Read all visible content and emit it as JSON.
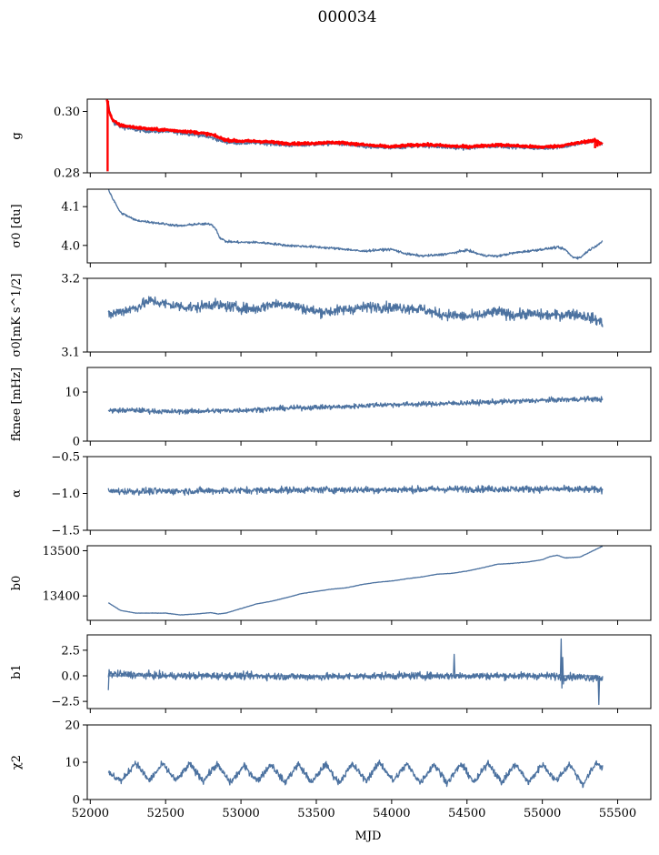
{
  "figure": {
    "title": "000034",
    "xlabel": "MJD"
  },
  "chart_data": [
    {
      "type": "line",
      "ylabel": "g",
      "xlim": [
        51980,
        55720
      ],
      "ylim": [
        0.28,
        0.304
      ],
      "yticks": [
        0.28,
        0.3
      ],
      "ytick_labels": [
        "0.28",
        "0.30"
      ],
      "xticks": [
        52000,
        52500,
        53000,
        53500,
        54000,
        54500,
        55000,
        55500
      ],
      "series": [
        {
          "color": "#4c72a0",
          "linewidth": 1.3,
          "noise": 0.0006,
          "x": [
            52120,
            52135,
            52160,
            52200,
            52300,
            52400,
            52500,
            52600,
            52700,
            52800,
            52900,
            53000,
            53100,
            53200,
            53300,
            53400,
            53500,
            53600,
            53700,
            53800,
            53900,
            54000,
            54100,
            54200,
            54300,
            54400,
            54500,
            54600,
            54700,
            54800,
            54900,
            55000,
            55100,
            55200,
            55300,
            55350,
            55400
          ],
          "y": [
            0.3025,
            0.2985,
            0.296,
            0.295,
            0.294,
            0.2935,
            0.2935,
            0.293,
            0.2925,
            0.2915,
            0.29,
            0.2897,
            0.2898,
            0.2895,
            0.289,
            0.289,
            0.2893,
            0.2895,
            0.2893,
            0.2885,
            0.2883,
            0.288,
            0.2885,
            0.2888,
            0.2886,
            0.2882,
            0.288,
            0.2884,
            0.2887,
            0.2885,
            0.2882,
            0.288,
            0.2883,
            0.289,
            0.29,
            0.2903,
            0.2893
          ]
        },
        {
          "color": "#ff0000",
          "linewidth": 2.6,
          "noise": 0.0004,
          "x": [
            52110,
            52125,
            52150,
            52200,
            52300,
            52400,
            52500,
            52600,
            52700,
            52800,
            52900,
            53000,
            53100,
            53200,
            53300,
            53400,
            53500,
            53600,
            53700,
            53800,
            53900,
            54000,
            54100,
            54200,
            54300,
            54400,
            54500,
            54600,
            54700,
            54800,
            54900,
            55000,
            55100,
            55200,
            55300,
            55350,
            55400
          ],
          "y": [
            0.304,
            0.3,
            0.297,
            0.2955,
            0.2948,
            0.2942,
            0.294,
            0.2936,
            0.2932,
            0.2925,
            0.2907,
            0.2903,
            0.2903,
            0.29,
            0.2896,
            0.2895,
            0.2897,
            0.2899,
            0.2897,
            0.2892,
            0.2888,
            0.2885,
            0.2889,
            0.2892,
            0.289,
            0.2887,
            0.2885,
            0.2888,
            0.2891,
            0.2889,
            0.2886,
            0.2884,
            0.2887,
            0.2894,
            0.2903,
            0.2905,
            0.2895
          ]
        }
      ]
    },
    {
      "type": "line",
      "ylabel": "σ0 [du]",
      "xlim": [
        51980,
        55720
      ],
      "ylim": [
        3.955,
        4.145
      ],
      "yticks": [
        4.0,
        4.1
      ],
      "ytick_labels": [
        "4.0",
        "4.1"
      ],
      "xticks": [
        52000,
        52500,
        53000,
        53500,
        54000,
        54500,
        55000,
        55500
      ],
      "series": [
        {
          "color": "#4c72a0",
          "linewidth": 1.3,
          "noise": 0.003,
          "x": [
            52120,
            52150,
            52200,
            52300,
            52400,
            52500,
            52600,
            52700,
            52800,
            52830,
            52860,
            52900,
            53000,
            53100,
            53200,
            53300,
            53400,
            53500,
            53600,
            53700,
            53800,
            53900,
            54000,
            54100,
            54200,
            54300,
            54400,
            54500,
            54600,
            54700,
            54800,
            54900,
            55000,
            55100,
            55150,
            55200,
            55250,
            55300,
            55400
          ],
          "y": [
            4.145,
            4.12,
            4.085,
            4.065,
            4.06,
            4.055,
            4.05,
            4.055,
            4.055,
            4.045,
            4.02,
            4.01,
            4.008,
            4.008,
            4.005,
            4.0,
            3.998,
            3.996,
            3.993,
            3.99,
            3.985,
            3.988,
            3.99,
            3.978,
            3.973,
            3.975,
            3.98,
            3.988,
            3.975,
            3.972,
            3.98,
            3.985,
            3.99,
            3.995,
            3.99,
            3.97,
            3.968,
            3.985,
            4.01
          ]
        }
      ]
    },
    {
      "type": "line",
      "ylabel": "σ0[mK s^1/2]",
      "xlim": [
        51980,
        55720
      ],
      "ylim": [
        3.1,
        3.2
      ],
      "yticks": [
        3.1,
        3.2
      ],
      "ytick_labels": [
        "3.1",
        "3.2"
      ],
      "xticks": [
        52000,
        52500,
        53000,
        53500,
        54000,
        54500,
        55000,
        55500
      ],
      "series": [
        {
          "color": "#4c72a0",
          "linewidth": 1.3,
          "noise": 0.007,
          "x": [
            52120,
            52200,
            52300,
            52400,
            52500,
            52600,
            52700,
            52800,
            52900,
            53000,
            53100,
            53200,
            53300,
            53400,
            53500,
            53600,
            53700,
            53800,
            53900,
            54000,
            54100,
            54200,
            54300,
            54400,
            54500,
            54600,
            54700,
            54800,
            54900,
            55000,
            55100,
            55200,
            55300,
            55400
          ],
          "y": [
            3.15,
            3.155,
            3.16,
            3.17,
            3.165,
            3.162,
            3.16,
            3.165,
            3.162,
            3.16,
            3.158,
            3.165,
            3.165,
            3.16,
            3.155,
            3.155,
            3.158,
            3.16,
            3.162,
            3.16,
            3.16,
            3.158,
            3.152,
            3.15,
            3.148,
            3.15,
            3.155,
            3.15,
            3.152,
            3.15,
            3.15,
            3.152,
            3.148,
            3.14
          ]
        }
      ]
    },
    {
      "type": "line",
      "ylabel": "fknee [mHz]",
      "xlim": [
        51980,
        55720
      ],
      "ylim": [
        0,
        15
      ],
      "yticks": [
        0,
        10
      ],
      "ytick_labels": [
        "0",
        "10"
      ],
      "xticks": [
        52000,
        52500,
        53000,
        53500,
        54000,
        54500,
        55000,
        55500
      ],
      "series": [
        {
          "color": "#4c72a0",
          "linewidth": 1.3,
          "noise": 0.5,
          "x": [
            52120,
            52300,
            52500,
            52700,
            52900,
            53100,
            53300,
            53500,
            53700,
            53900,
            54100,
            54300,
            54500,
            54700,
            54900,
            55100,
            55300,
            55400
          ],
          "y": [
            6.2,
            6.3,
            6.0,
            6.1,
            6.2,
            6.4,
            6.7,
            6.9,
            7.0,
            7.4,
            7.5,
            7.6,
            7.8,
            8.0,
            8.2,
            8.4,
            8.6,
            8.5
          ]
        }
      ]
    },
    {
      "type": "line",
      "ylabel": "α",
      "xlim": [
        51980,
        55720
      ],
      "ylim": [
        -1.5,
        -0.5
      ],
      "yticks": [
        -1.5,
        -1.0,
        -0.5
      ],
      "ytick_labels": [
        "−1.5",
        "−1.0",
        "−0.5"
      ],
      "xticks": [
        52000,
        52500,
        53000,
        53500,
        54000,
        54500,
        55000,
        55500
      ],
      "series": [
        {
          "color": "#4c72a0",
          "linewidth": 1.3,
          "noise": 0.045,
          "x": [
            52120,
            52500,
            53000,
            53500,
            54000,
            54500,
            55000,
            55400
          ],
          "y": [
            -0.97,
            -0.97,
            -0.96,
            -0.95,
            -0.95,
            -0.94,
            -0.94,
            -0.95
          ]
        }
      ]
    },
    {
      "type": "line",
      "ylabel": "b0",
      "xlim": [
        51980,
        55720
      ],
      "ylim": [
        13346,
        13511
      ],
      "yticks": [
        13400,
        13500
      ],
      "ytick_labels": [
        "13400",
        "13500"
      ],
      "xticks": [
        52000,
        52500,
        53000,
        53500,
        54000,
        54500,
        55000,
        55500
      ],
      "series": [
        {
          "color": "#4c72a0",
          "linewidth": 1.3,
          "noise": 0.4,
          "x": [
            52120,
            52200,
            52300,
            52400,
            52500,
            52600,
            52700,
            52800,
            52850,
            52900,
            53000,
            53100,
            53200,
            53300,
            53400,
            53500,
            53600,
            53700,
            53800,
            53900,
            54000,
            54100,
            54200,
            54300,
            54400,
            54500,
            54600,
            54700,
            54800,
            54900,
            55000,
            55050,
            55100,
            55150,
            55200,
            55250,
            55300,
            55400
          ],
          "y": [
            13385,
            13368,
            13362,
            13362,
            13362,
            13358,
            13360,
            13363,
            13360,
            13362,
            13372,
            13382,
            13388,
            13396,
            13405,
            13410,
            13415,
            13418,
            13425,
            13430,
            13433,
            13438,
            13442,
            13448,
            13450,
            13455,
            13462,
            13470,
            13472,
            13475,
            13480,
            13487,
            13490,
            13484,
            13485,
            13486,
            13494,
            13510
          ]
        }
      ]
    },
    {
      "type": "line",
      "ylabel": "b1",
      "xlim": [
        51980,
        55720
      ],
      "ylim": [
        -3.2,
        4.0
      ],
      "yticks": [
        -2.5,
        0.0,
        2.5
      ],
      "ytick_labels": [
        "−2.5",
        "0.0",
        "2.5"
      ],
      "xticks": [
        52000,
        52500,
        53000,
        53500,
        54000,
        54500,
        55000,
        55500
      ],
      "series": [
        {
          "color": "#4c72a0",
          "linewidth": 1.3,
          "noise": 0.35,
          "x": [
            52120,
            52500,
            53000,
            53500,
            54000,
            54500,
            55000,
            55400
          ],
          "y": [
            0.2,
            0.0,
            0.0,
            -0.1,
            0.0,
            0.0,
            0.0,
            -0.2
          ]
        },
        {
          "color": "#4c72a0",
          "linewidth": 1.3,
          "noise": 0,
          "x": [
            52120,
            52125,
            52130,
            54410,
            54415,
            54420,
            55120,
            55125,
            55130,
            55135,
            55140,
            55145,
            55370,
            55375,
            55380
          ],
          "y": [
            -1.4,
            0.6,
            0.0,
            0.0,
            2.1,
            0.0,
            0.0,
            3.6,
            -1.2,
            1.8,
            -0.8,
            0.0,
            0.0,
            -2.8,
            0.0
          ]
        }
      ]
    },
    {
      "type": "line",
      "ylabel": "χ2",
      "xlim": [
        51980,
        55720
      ],
      "ylim": [
        0,
        20
      ],
      "yticks": [
        0,
        10,
        20
      ],
      "ytick_labels": [
        "0",
        "10",
        "20"
      ],
      "xticks": [
        52000,
        52500,
        53000,
        53500,
        54000,
        54500,
        55000,
        55500
      ],
      "xtick_labels": [
        "52000",
        "52500",
        "53000",
        "53500",
        "54000",
        "54500",
        "55000",
        "55500"
      ],
      "series": [
        {
          "color": "#4c72a0",
          "linewidth": 1.3,
          "noise": 0.9,
          "x": [
            52120,
            52210,
            52300,
            52390,
            52480,
            52570,
            52660,
            52750,
            52840,
            52930,
            53020,
            53110,
            53200,
            53290,
            53380,
            53470,
            53560,
            53650,
            53740,
            53830,
            53920,
            54010,
            54100,
            54190,
            54280,
            54370,
            54460,
            54550,
            54640,
            54730,
            54820,
            54910,
            55000,
            55090,
            55180,
            55270,
            55360,
            55400
          ],
          "y": [
            7,
            5,
            10,
            5,
            9.5,
            5,
            9.5,
            5,
            9.5,
            4.5,
            9,
            5,
            9.5,
            4.5,
            9.5,
            4.5,
            9.5,
            4.5,
            9.5,
            5,
            10,
            5,
            9.5,
            4.5,
            9.5,
            4.5,
            9.5,
            4.5,
            10,
            4.5,
            9.5,
            4.5,
            9.5,
            5,
            9.5,
            4,
            10,
            8.5
          ]
        }
      ]
    }
  ]
}
